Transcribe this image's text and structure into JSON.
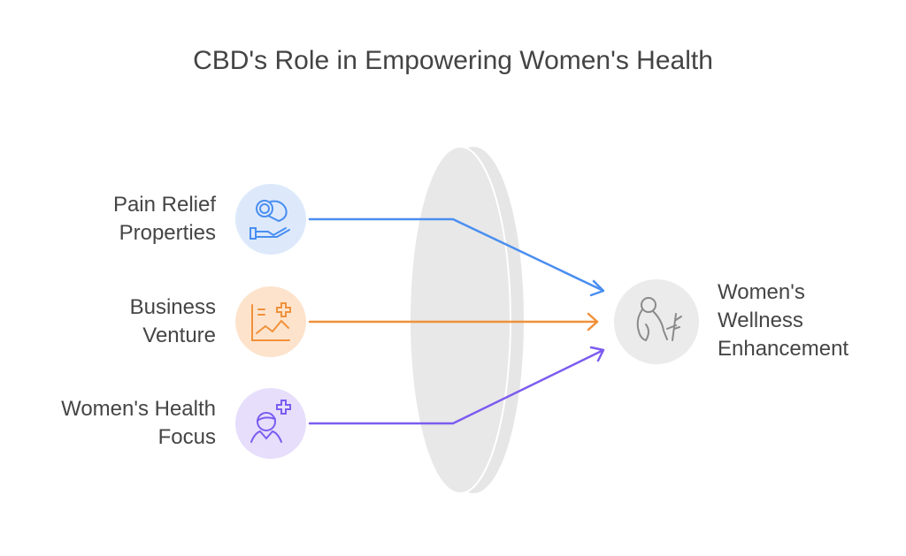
{
  "title": "CBD's Role in Empowering Women's Health",
  "inputs": [
    {
      "label_line1": "Pain Relief",
      "label_line2": "Properties",
      "icon": "hand-holding-pill-icon",
      "color": "#4a8ef0",
      "bg": "#dde9fb"
    },
    {
      "label_line1": "Business",
      "label_line2": "Venture",
      "icon": "chart-plus-icon",
      "color": "#f0913a",
      "bg": "#fde3cc"
    },
    {
      "label_line1": "Women's Health",
      "label_line2": "Focus",
      "icon": "woman-plus-icon",
      "color": "#7c5cf0",
      "bg": "#e6defb"
    }
  ],
  "output": {
    "label_line1": "Women's",
    "label_line2": "Wellness",
    "label_line3": "Enhancement",
    "icon": "woman-with-plant-icon",
    "color": "#8a8a8a",
    "bg": "#ebebeb"
  }
}
